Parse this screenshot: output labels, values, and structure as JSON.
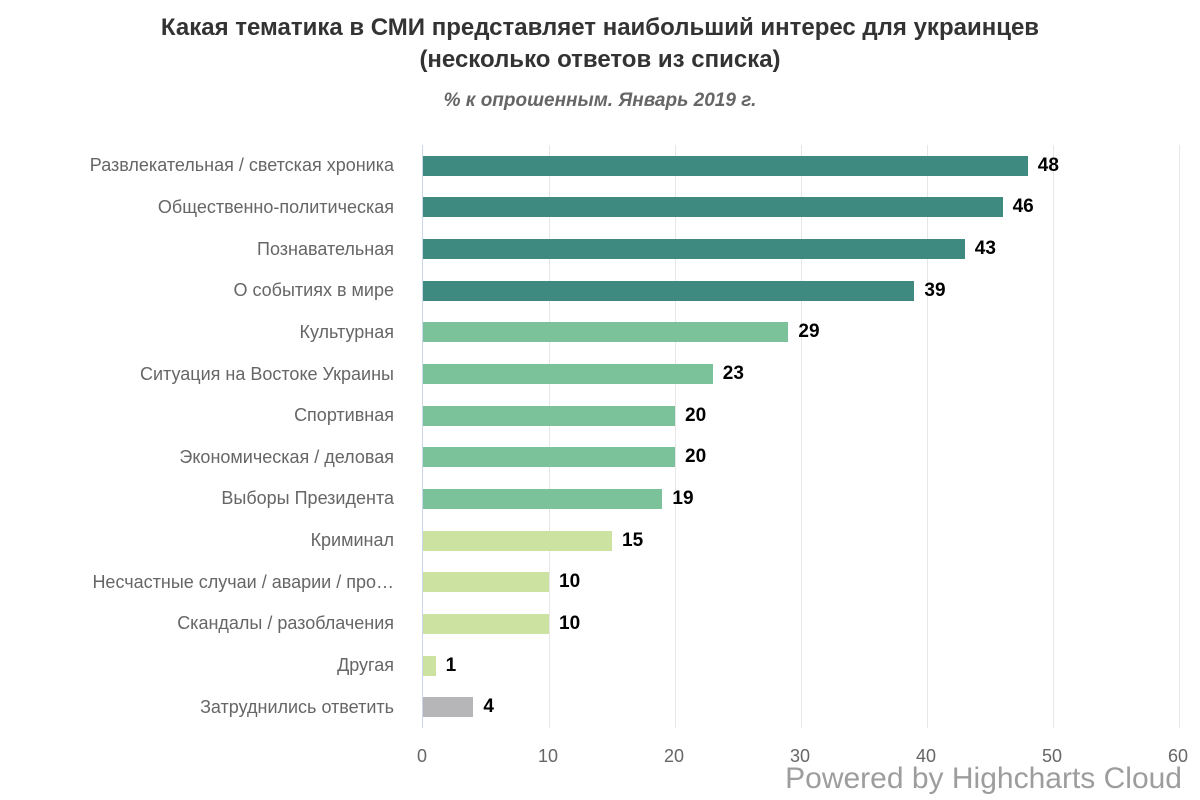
{
  "chart_data": {
    "type": "bar",
    "orientation": "horizontal",
    "title": "Какая тематика в СМИ представляет наибольший интерес для украинцев (несколько ответов из списка)",
    "subtitle": "% к опрошенным. Январь 2019 г.",
    "categories": [
      "Развлекательная / светская хроника",
      "Общественно-политическая",
      "Познавательная",
      "О событиях в мире",
      "Культурная",
      "Ситуация на Востоке Украины",
      "Спортивная",
      "Экономическая / деловая",
      "Выборы Президента",
      "Криминал",
      "Несчастные случаи / аварии / про…",
      "Скандалы / разоблачения",
      "Другая",
      "Затруднились ответить"
    ],
    "values": [
      48,
      46,
      43,
      39,
      29,
      23,
      20,
      20,
      19,
      15,
      10,
      10,
      1,
      4
    ],
    "bar_colors": [
      "#3e8a80",
      "#3e8a80",
      "#3e8a80",
      "#3e8a80",
      "#7bc199",
      "#7bc199",
      "#7bc199",
      "#7bc199",
      "#7bc199",
      "#cbe2a0",
      "#cbe2a0",
      "#cbe2a0",
      "#cbe2a0",
      "#b6b6b8"
    ],
    "xlim": [
      0,
      60
    ],
    "x_ticks": [
      0,
      10,
      20,
      30,
      40,
      50,
      60
    ],
    "grid": true,
    "legend": "none",
    "data_labels": true,
    "credits": "Powered by Highcharts Cloud"
  },
  "colors": {
    "axis_line": "#ccd6eb",
    "gridline": "#e6e6e6",
    "category_label": "#666666",
    "tick_label": "#666666",
    "value_label": "#000000",
    "title": "#333333",
    "subtitle": "#666666",
    "credits": "#9d9d9d"
  }
}
